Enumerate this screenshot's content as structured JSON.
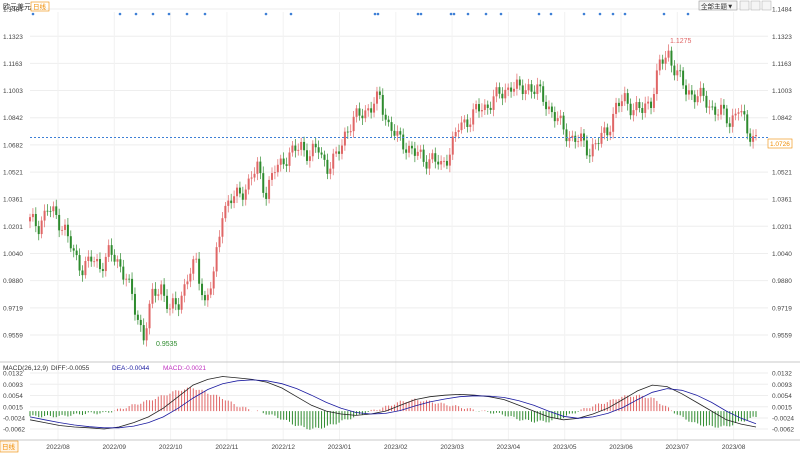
{
  "header": {
    "title": "欧元美元",
    "period_badge": "日线",
    "dropdown_label": "全部主题▼"
  },
  "price_axis": {
    "ticks": [
      "1.1484",
      "1.1323",
      "1.1163",
      "1.1003",
      "1.0842",
      "1.0682",
      "1.0521",
      "1.0361",
      "1.0201",
      "1.0040",
      "0.9880",
      "0.9719",
      "0.9559"
    ],
    "current_price": "1.0726"
  },
  "macd_axis": {
    "ticks": [
      "0.0132",
      "0.0093",
      "0.0054",
      "0.0015",
      "-0.0024",
      "-0.0062"
    ]
  },
  "macd_header": {
    "name": "MACD(26,12,9)",
    "diff": "DIFF:-0.0055",
    "dea": "DEA:-0.0044",
    "macd": "MACD:-0.0021"
  },
  "x_axis": {
    "labels": [
      "2022/08",
      "2022/09",
      "2022/10",
      "2022/11",
      "2022/12",
      "2023/01",
      "2023/02",
      "2023/03",
      "2023/04",
      "2023/05",
      "2023/06",
      "2023/07",
      "2023/08"
    ]
  },
  "bottom_tab": "日线",
  "colors": {
    "up": "#e06666",
    "down": "#2e8b2e",
    "diff_line": "#222222",
    "dea_line": "#1a1aa0",
    "price_line": "#3d7fd6",
    "accent": "#f08c00",
    "event_marker": "#3d7fd6"
  },
  "chart_data": {
    "type": "candlestick",
    "title": "欧元美元",
    "annotations": [
      {
        "label": "0.9535",
        "value": 0.9535
      },
      {
        "label": "1.1275",
        "value": 1.1275
      }
    ],
    "ylim": [
      0.948,
      1.1484
    ],
    "price_points": [
      {
        "x": "2022/08",
        "y": 1.023
      },
      {
        "x": "2022/08",
        "y": 1.021
      },
      {
        "x": "2022/08",
        "y": 1.03
      },
      {
        "x": "2022/08",
        "y": 1.026
      },
      {
        "x": "2022/08",
        "y": 1.018
      },
      {
        "x": "2022/08",
        "y": 1.003
      },
      {
        "x": "2022/08",
        "y": 0.996
      },
      {
        "x": "2022/09",
        "y": 1.0
      },
      {
        "x": "2022/09",
        "y": 0.997
      },
      {
        "x": "2022/09",
        "y": 1.004
      },
      {
        "x": "2022/09",
        "y": 0.999
      },
      {
        "x": "2022/09",
        "y": 0.991
      },
      {
        "x": "2022/09",
        "y": 0.97
      },
      {
        "x": "2022/09",
        "y": 0.956
      },
      {
        "x": "2022/10",
        "y": 0.978
      },
      {
        "x": "2022/10",
        "y": 0.985
      },
      {
        "x": "2022/10",
        "y": 0.97
      },
      {
        "x": "2022/10",
        "y": 0.975
      },
      {
        "x": "2022/10",
        "y": 0.99
      },
      {
        "x": "2022/10",
        "y": 0.998
      },
      {
        "x": "2022/10",
        "y": 0.975
      },
      {
        "x": "2022/11",
        "y": 0.99
      },
      {
        "x": "2022/11",
        "y": 1.03
      },
      {
        "x": "2022/11",
        "y": 1.035
      },
      {
        "x": "2022/11",
        "y": 1.04
      },
      {
        "x": "2022/11",
        "y": 1.045
      },
      {
        "x": "2022/11",
        "y": 1.055
      },
      {
        "x": "2022/11",
        "y": 1.04
      },
      {
        "x": "2022/12",
        "y": 1.053
      },
      {
        "x": "2022/12",
        "y": 1.06
      },
      {
        "x": "2022/12",
        "y": 1.063
      },
      {
        "x": "2022/12",
        "y": 1.068
      },
      {
        "x": "2022/12",
        "y": 1.062
      },
      {
        "x": "2022/12",
        "y": 1.066
      },
      {
        "x": "2023/01",
        "y": 1.055
      },
      {
        "x": "2023/01",
        "y": 1.06
      },
      {
        "x": "2023/01",
        "y": 1.075
      },
      {
        "x": "2023/01",
        "y": 1.082
      },
      {
        "x": "2023/01",
        "y": 1.088
      },
      {
        "x": "2023/01",
        "y": 1.09
      },
      {
        "x": "2023/02",
        "y": 1.096
      },
      {
        "x": "2023/02",
        "y": 1.08
      },
      {
        "x": "2023/02",
        "y": 1.072
      },
      {
        "x": "2023/02",
        "y": 1.068
      },
      {
        "x": "2023/02",
        "y": 1.063
      },
      {
        "x": "2023/02",
        "y": 1.06
      },
      {
        "x": "2023/03",
        "y": 1.06
      },
      {
        "x": "2023/03",
        "y": 1.055
      },
      {
        "x": "2023/03",
        "y": 1.065
      },
      {
        "x": "2023/03",
        "y": 1.078
      },
      {
        "x": "2023/03",
        "y": 1.083
      },
      {
        "x": "2023/03",
        "y": 1.088
      },
      {
        "x": "2023/04",
        "y": 1.09
      },
      {
        "x": "2023/04",
        "y": 1.096
      },
      {
        "x": "2023/04",
        "y": 1.098
      },
      {
        "x": "2023/04",
        "y": 1.104
      },
      {
        "x": "2023/04",
        "y": 1.1
      },
      {
        "x": "2023/04",
        "y": 1.103
      },
      {
        "x": "2023/05",
        "y": 1.1
      },
      {
        "x": "2023/05",
        "y": 1.093
      },
      {
        "x": "2023/05",
        "y": 1.085
      },
      {
        "x": "2023/05",
        "y": 1.077
      },
      {
        "x": "2023/05",
        "y": 1.072
      },
      {
        "x": "2023/05",
        "y": 1.07
      },
      {
        "x": "2023/06",
        "y": 1.065
      },
      {
        "x": "2023/06",
        "y": 1.07
      },
      {
        "x": "2023/06",
        "y": 1.077
      },
      {
        "x": "2023/06",
        "y": 1.09
      },
      {
        "x": "2023/06",
        "y": 1.095
      },
      {
        "x": "2023/06",
        "y": 1.09
      },
      {
        "x": "2023/07",
        "y": 1.088
      },
      {
        "x": "2023/07",
        "y": 1.095
      },
      {
        "x": "2023/07",
        "y": 1.115
      },
      {
        "x": "2023/07",
        "y": 1.122
      },
      {
        "x": "2023/07",
        "y": 1.11
      },
      {
        "x": "2023/07",
        "y": 1.1
      },
      {
        "x": "2023/08",
        "y": 1.098
      },
      {
        "x": "2023/08",
        "y": 1.095
      },
      {
        "x": "2023/08",
        "y": 1.09
      },
      {
        "x": "2023/08",
        "y": 1.087
      },
      {
        "x": "2023/08",
        "y": 1.082
      },
      {
        "x": "2023/08",
        "y": 1.09
      },
      {
        "x": "2023/08",
        "y": 1.076
      },
      {
        "x": "2023/08",
        "y": 1.0726
      }
    ],
    "macd": {
      "diff": [
        -0.003,
        -0.004,
        -0.005,
        -0.0055,
        -0.0058,
        -0.0062,
        -0.0055,
        -0.004,
        -0.002,
        0.001,
        0.005,
        0.009,
        0.011,
        0.012,
        0.0115,
        0.011,
        0.01,
        0.008,
        0.005,
        0.002,
        0.0,
        -0.001,
        -0.0015,
        -0.001,
        0.0,
        0.002,
        0.004,
        0.005,
        0.0055,
        0.0058,
        0.0055,
        0.005,
        0.004,
        0.002,
        0.0,
        -0.002,
        -0.003,
        -0.0025,
        -0.001,
        0.001,
        0.004,
        0.007,
        0.009,
        0.0085,
        0.006,
        0.003,
        0.0,
        -0.003,
        -0.0045,
        -0.0055
      ],
      "dea": [
        -0.002,
        -0.003,
        -0.004,
        -0.0048,
        -0.0054,
        -0.0058,
        -0.0058,
        -0.0052,
        -0.004,
        -0.002,
        0.001,
        0.0045,
        0.0075,
        0.0095,
        0.0105,
        0.0108,
        0.0105,
        0.0095,
        0.0078,
        0.0055,
        0.003,
        0.001,
        -0.0005,
        -0.001,
        -0.0008,
        0.0002,
        0.0018,
        0.0032,
        0.0042,
        0.005,
        0.0053,
        0.0052,
        0.0047,
        0.0036,
        0.002,
        0.0,
        -0.0018,
        -0.0025,
        -0.002,
        -0.0008,
        0.0012,
        0.004,
        0.0065,
        0.0078,
        0.0072,
        0.0055,
        0.003,
        0.0,
        -0.0025,
        -0.0044
      ]
    }
  }
}
